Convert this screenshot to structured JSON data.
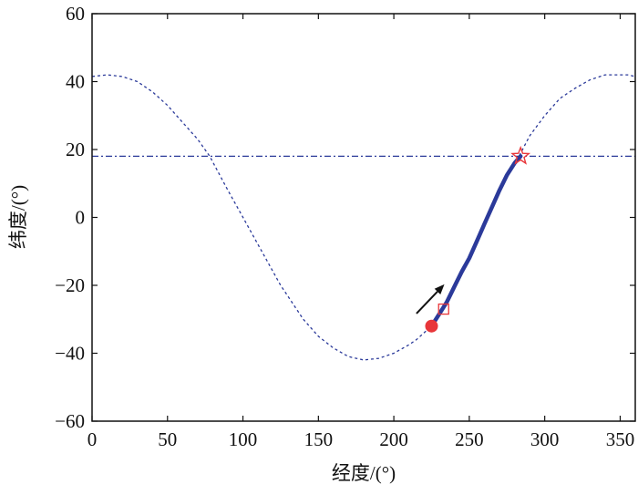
{
  "chart_data": {
    "type": "line",
    "xlabel": "经度/(°)",
    "ylabel": "纬度/(°)",
    "xlim": [
      0,
      360
    ],
    "ylim": [
      -60,
      60
    ],
    "xticks": [
      0,
      50,
      100,
      150,
      200,
      250,
      300,
      350
    ],
    "yticks": [
      -60,
      -40,
      -20,
      0,
      20,
      40,
      60
    ],
    "grid": false,
    "series": [
      {
        "name": "ground-track",
        "style": "dashed",
        "color": "#2b3a9a",
        "x": [
          0,
          10,
          20,
          30,
          40,
          50,
          60,
          70,
          78,
          90,
          100,
          110,
          125,
          140,
          150,
          160,
          170,
          180,
          190,
          200,
          210,
          215,
          225,
          235,
          245,
          250,
          260,
          270,
          283,
          290,
          300,
          310,
          320,
          330,
          340,
          350,
          355,
          360
        ],
        "y": [
          41.5,
          42,
          41.5,
          40,
          37,
          33,
          28,
          23,
          18,
          8,
          0,
          -8,
          -20,
          -30,
          -35,
          -38.5,
          -41,
          -42,
          -41.5,
          -40,
          -37.5,
          -36,
          -32,
          -25,
          -16,
          -12,
          -2,
          8,
          18,
          24,
          30,
          35,
          38,
          40.5,
          42,
          42,
          42,
          41.5
        ]
      },
      {
        "name": "trajectory",
        "style": "solid-thick",
        "color": "#2b3a9a",
        "x": [
          225,
          230,
          235,
          240,
          245,
          250,
          255,
          260,
          265,
          270,
          275,
          280,
          284
        ],
        "y": [
          -32,
          -28.5,
          -25,
          -20.5,
          -16,
          -12,
          -7,
          -2,
          3,
          8,
          12.5,
          16,
          18
        ]
      },
      {
        "name": "reference-latitude",
        "style": "dash-dot",
        "color": "#2b3a9a",
        "x": [
          0,
          360
        ],
        "y": [
          18,
          18
        ]
      }
    ],
    "markers": [
      {
        "name": "start-point",
        "shape": "filled-circle",
        "color": "#e8363a",
        "x": 225,
        "y": -32
      },
      {
        "name": "square-point",
        "shape": "open-square",
        "color": "#e8363a",
        "x": 233,
        "y": -27
      },
      {
        "name": "end-point",
        "shape": "open-star",
        "color": "#e8363a",
        "x": 284,
        "y": 18
      }
    ],
    "annotations": [
      {
        "name": "direction-arrow",
        "color": "#111111",
        "from": [
          215,
          -28.3
        ],
        "to": [
          233.5,
          -19.7
        ]
      }
    ]
  }
}
